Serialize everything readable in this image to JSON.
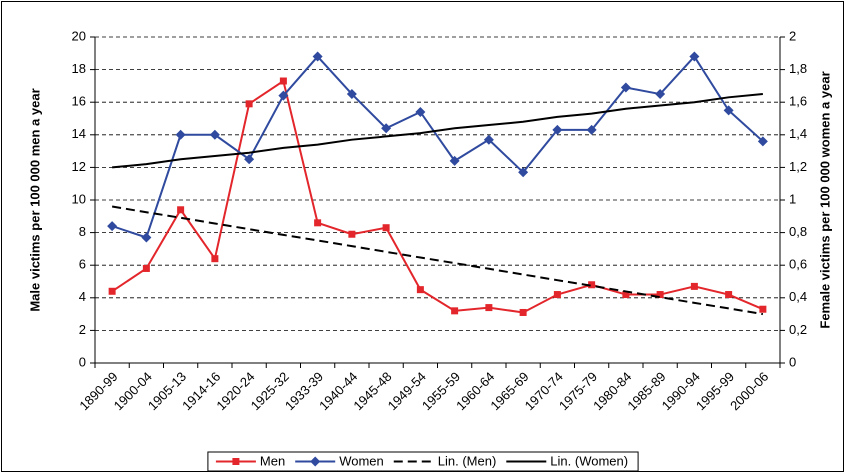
{
  "chart_data": {
    "type": "line",
    "y_label": "Male victims per 100 000 men a year",
    "y2_label": "Female victims per 100 000 women a year",
    "categories": [
      "1890-99",
      "1900-04",
      "1905-13",
      "1914-16",
      "1920-24",
      "1925-32",
      "1933-39",
      "1940-44",
      "1945-48",
      "1949-54",
      "1955-59",
      "1960-64",
      "1965-69",
      "1970-74",
      "1975-79",
      "1980-84",
      "1985-89",
      "1990-94",
      "1995-99",
      "2000-06"
    ],
    "series": [
      {
        "name": "Men",
        "color": "#e3262b",
        "marker": "square",
        "values": [
          4.4,
          5.8,
          9.4,
          6.4,
          15.9,
          17.3,
          8.6,
          7.9,
          8.3,
          4.5,
          3.2,
          3.4,
          3.1,
          4.2,
          4.8,
          4.2,
          4.2,
          4.7,
          4.2,
          3.3
        ]
      },
      {
        "name": "Women",
        "color": "#2f4a9e",
        "marker": "diamond",
        "axis": "y2",
        "values": [
          0.84,
          0.77,
          1.4,
          1.4,
          1.25,
          1.64,
          1.88,
          1.65,
          1.44,
          1.54,
          1.24,
          1.37,
          1.17,
          1.43,
          1.43,
          1.69,
          1.65,
          1.88,
          1.55,
          1.36
        ]
      },
      {
        "name": "Lin. (Men)",
        "color": "#000000",
        "dash": true,
        "values": [
          9.6,
          9.25,
          8.91,
          8.56,
          8.21,
          7.86,
          7.52,
          7.17,
          6.82,
          6.47,
          6.13,
          5.78,
          5.43,
          5.08,
          4.74,
          4.39,
          4.04,
          3.69,
          3.35,
          3.0
        ]
      },
      {
        "name": "Lin. (Women)",
        "color": "#000000",
        "axis": "y2",
        "values": [
          1.2,
          1.22,
          1.25,
          1.27,
          1.29,
          1.32,
          1.34,
          1.37,
          1.39,
          1.41,
          1.44,
          1.46,
          1.48,
          1.51,
          1.53,
          1.56,
          1.58,
          1.6,
          1.63,
          1.65
        ]
      }
    ],
    "ylim": [
      0,
      20
    ],
    "yticks": [
      0,
      2,
      4,
      6,
      8,
      10,
      12,
      14,
      16,
      18,
      20
    ],
    "y2lim": [
      0,
      2
    ],
    "y2ticks": [
      0,
      {
        "value": 0.2,
        "label": "0,2"
      },
      {
        "value": 0.4,
        "label": "0,4"
      },
      {
        "value": 0.6,
        "label": "0,6"
      },
      {
        "value": 0.8,
        "label": "0,8"
      },
      1,
      {
        "value": 1.2,
        "label": "1,2"
      },
      {
        "value": 1.4,
        "label": "1,4"
      },
      {
        "value": 1.6,
        "label": "1,6"
      },
      {
        "value": 1.8,
        "label": "1,8"
      },
      2
    ],
    "grid": true,
    "legend": "bottom"
  }
}
